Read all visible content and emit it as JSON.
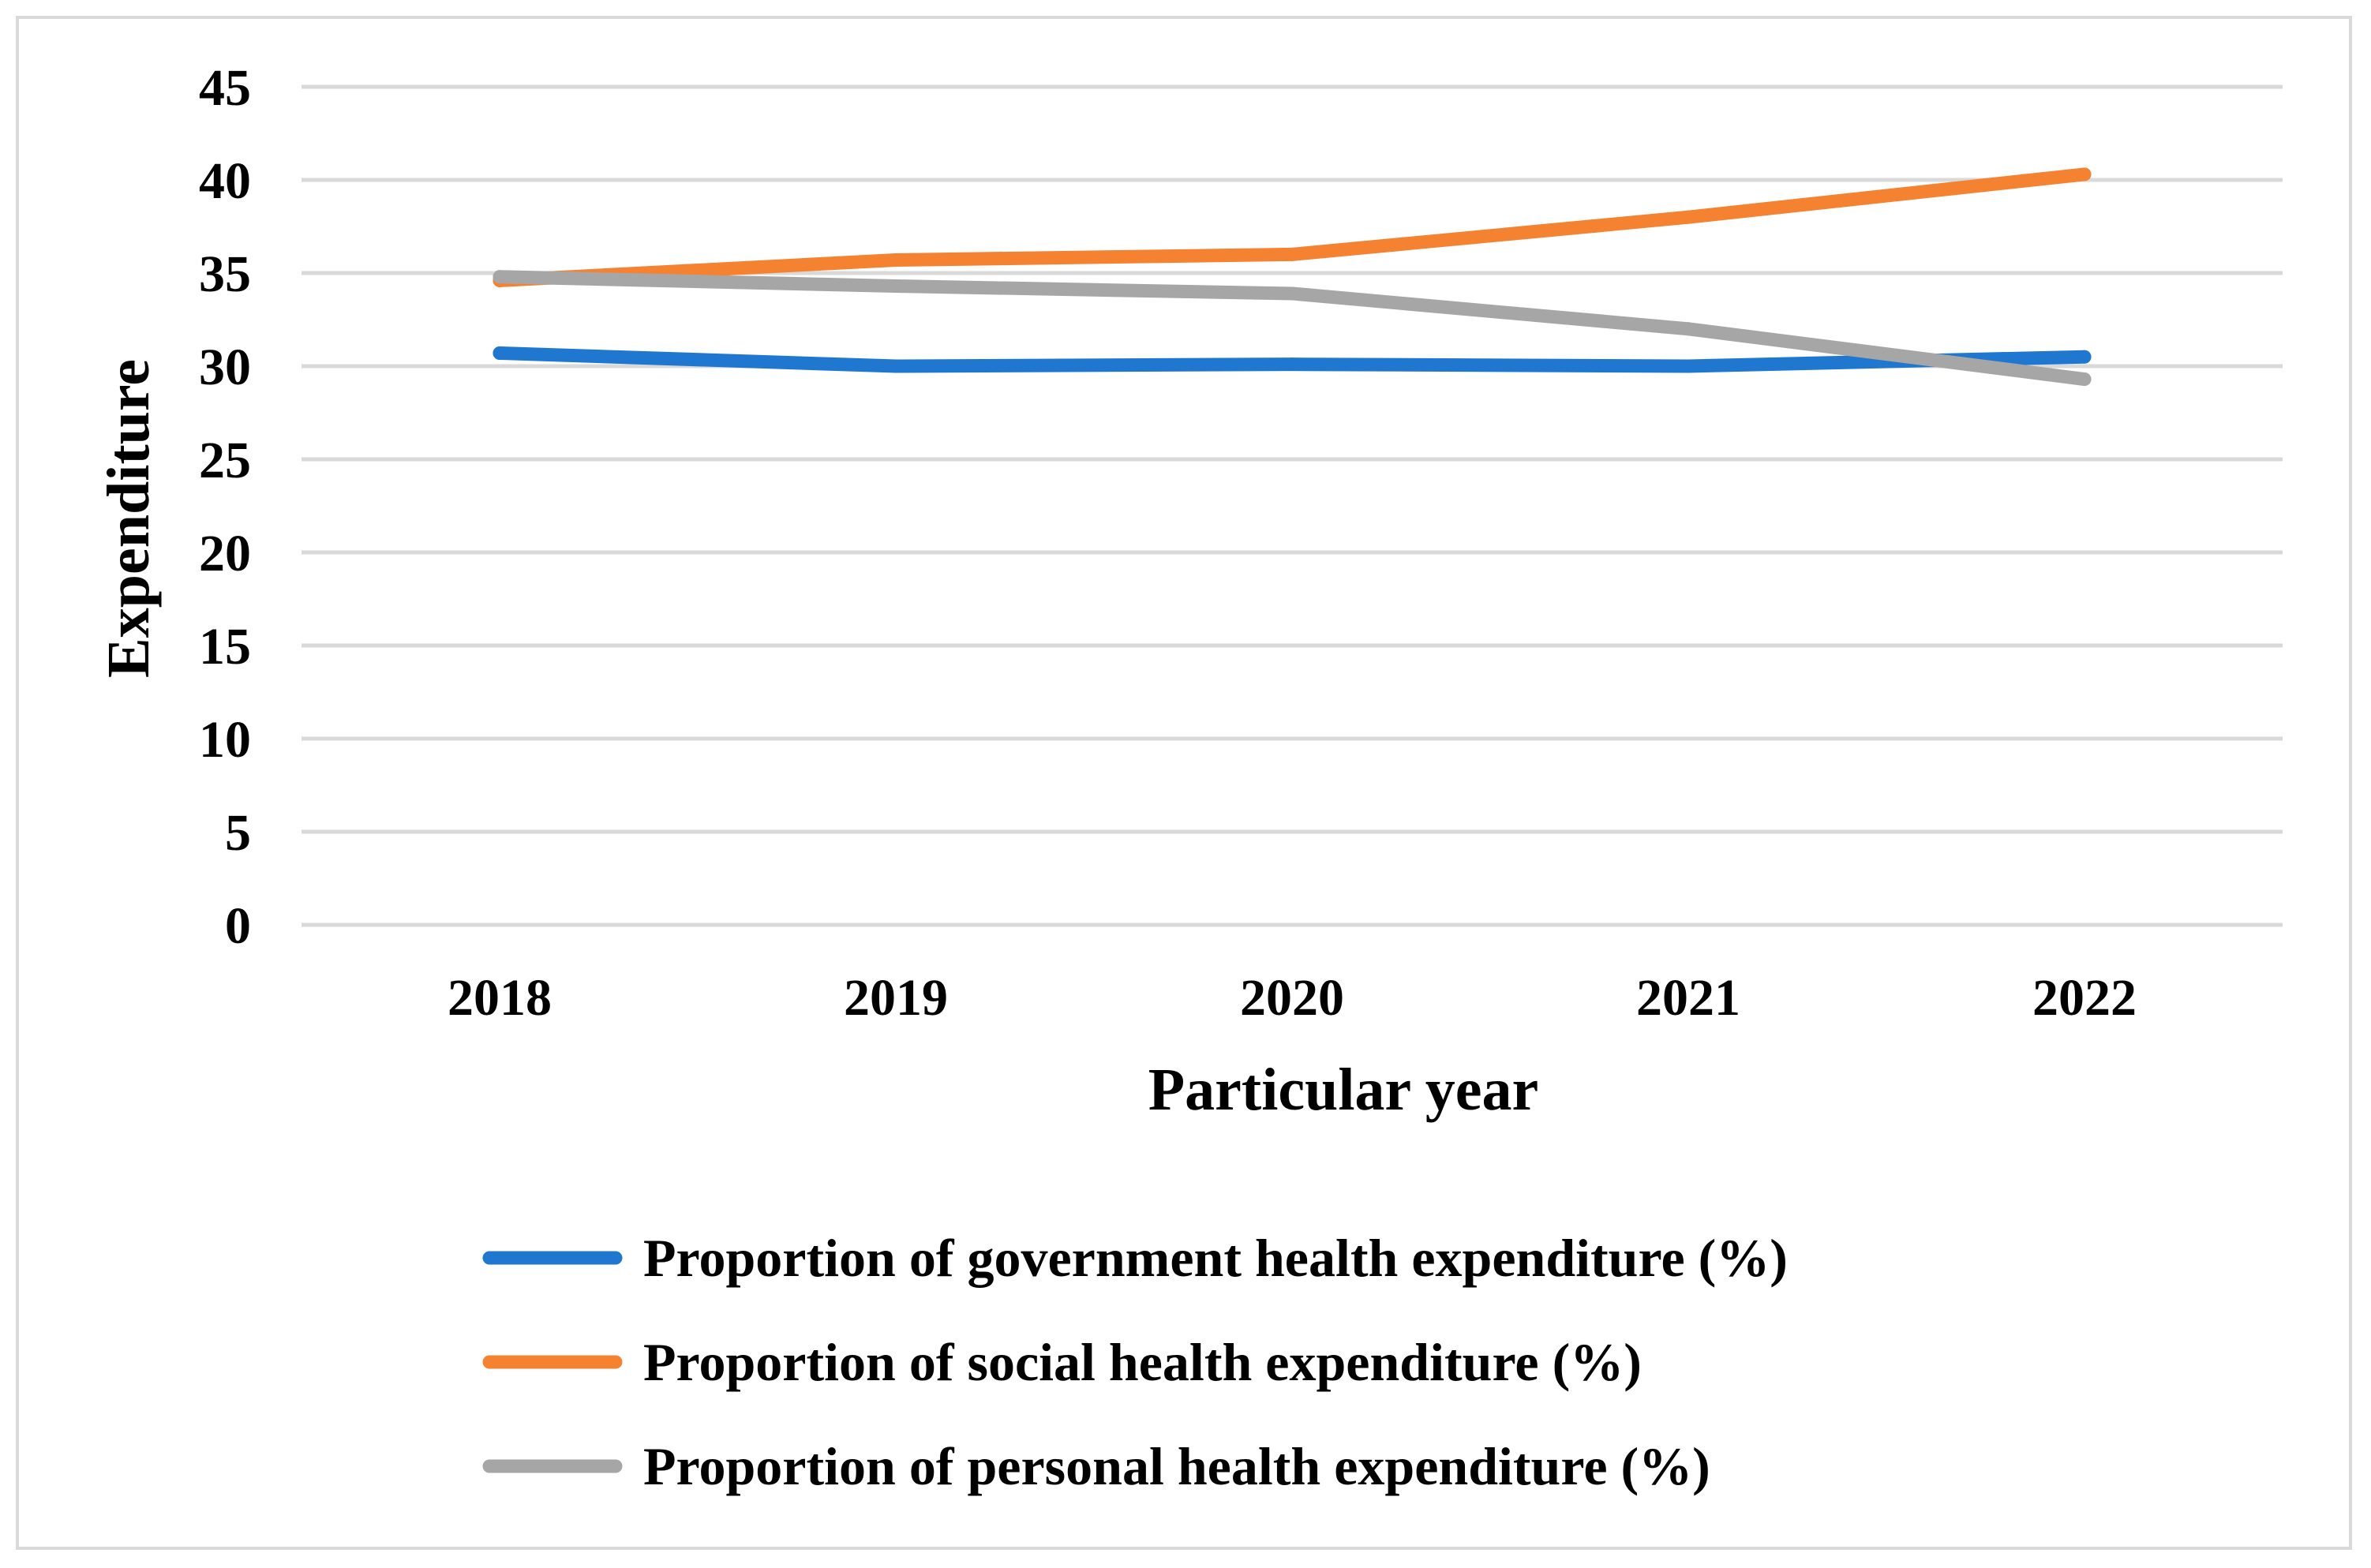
{
  "chart_data": {
    "type": "line",
    "title": "",
    "xlabel": "Particular year",
    "ylabel": "Expenditure",
    "ylim": [
      0,
      45
    ],
    "yticks": [
      0,
      5,
      10,
      15,
      20,
      25,
      30,
      35,
      40,
      45
    ],
    "grid": true,
    "legend_position": "bottom",
    "categories": [
      "2018",
      "2019",
      "2020",
      "2021",
      "2022"
    ],
    "series": [
      {
        "name": "Proportion of government health expenditure (%)",
        "color": "#1f77d0",
        "values": [
          30.7,
          30.0,
          30.1,
          30.0,
          30.5
        ]
      },
      {
        "name": "Proportion of social health expenditure (%)",
        "color": "#f58231",
        "values": [
          34.6,
          35.7,
          36.0,
          38.0,
          40.3
        ]
      },
      {
        "name": "Proportion of personal health expenditure (%)",
        "color": "#a6a6a6",
        "values": [
          34.8,
          34.3,
          33.9,
          32.0,
          29.3
        ]
      }
    ]
  }
}
